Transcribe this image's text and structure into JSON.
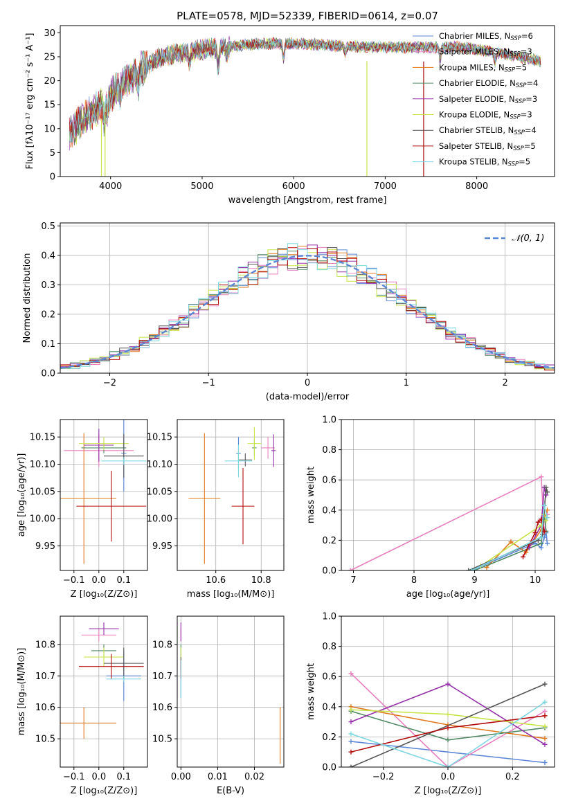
{
  "colors": {
    "chabrier_miles": "#5b86d6",
    "salpeter_miles": "#e77fbf",
    "kroupa_miles": "#e07a1f",
    "chabrier_elodie": "#4f8a64",
    "salpeter_elodie": "#9430a8",
    "kroupa_elodie": "#c7e44a",
    "chabrier_stelib": "#555555",
    "salpeter_stelib": "#b20b0b",
    "kroupa_stelib": "#7fd7e0"
  },
  "chart_data": [
    {
      "id": "spectrum",
      "type": "line",
      "title": "PLATE=0578, MJD=52339, FIBERID=0614, z=0.07",
      "xlabel": "wavelength [Angstrom, rest frame]",
      "ylabel": "Flux [fλ10⁻¹⁷ erg cm⁻² s⁻¹ A⁻¹]",
      "xlim": [
        3450,
        8850
      ],
      "ylim": [
        0,
        31.5
      ],
      "xticks": [
        4000,
        5000,
        6000,
        7000,
        8000
      ],
      "yticks": [
        0,
        5,
        10,
        15,
        20,
        25,
        30
      ],
      "legend_position": "top-right",
      "legend": [
        {
          "key": "chabrier_miles",
          "base": "Chabrier MILES, N",
          "sub": "SSP",
          "tail": "=6"
        },
        {
          "key": "salpeter_miles",
          "base": "Salpeter MILES, N",
          "sub": "SSP",
          "tail": "=3"
        },
        {
          "key": "kroupa_miles",
          "base": "Kroupa MILES, N",
          "sub": "SSP",
          "tail": "=5"
        },
        {
          "key": "chabrier_elodie",
          "base": "Chabrier ELODIE, N",
          "sub": "SSP",
          "tail": "=4"
        },
        {
          "key": "salpeter_elodie",
          "base": "Salpeter ELODIE, N",
          "sub": "SSP",
          "tail": "=3"
        },
        {
          "key": "kroupa_elodie",
          "base": "Kroupa ELODIE, N",
          "sub": "SSP",
          "tail": "=3"
        },
        {
          "key": "chabrier_stelib",
          "base": "Chabrier STELIB, N",
          "sub": "SSP",
          "tail": "=4"
        },
        {
          "key": "salpeter_stelib",
          "base": "Salpeter STELIB, N",
          "sub": "SSP",
          "tail": "=5"
        },
        {
          "key": "kroupa_stelib",
          "base": "Kroupa STELIB, N",
          "sub": "SSP",
          "tail": "=5"
        }
      ],
      "continuum": {
        "x": [
          3550,
          3700,
          3900,
          4000,
          4100,
          4300,
          4500,
          4700,
          5000,
          5200,
          5500,
          5800,
          6200,
          6600,
          7000,
          7400,
          7800,
          8200,
          8600,
          8700
        ],
        "y": [
          9,
          12,
          15,
          17,
          19,
          22,
          24.5,
          25.5,
          26.5,
          27,
          27.5,
          27.8,
          27.6,
          27.2,
          27,
          27,
          27,
          26,
          24.5,
          24
        ]
      },
      "drops": [
        {
          "key": "kroupa_elodie",
          "x": 3900,
          "y": 0
        },
        {
          "key": "kroupa_elodie",
          "x": 3940,
          "y": 0
        },
        {
          "key": "kroupa_elodie",
          "x": 6800,
          "y": 0
        },
        {
          "key": "salpeter_stelib",
          "x": 7420,
          "y": 0
        }
      ]
    },
    {
      "id": "residuals",
      "type": "step",
      "xlabel": "(data-model)/error",
      "ylabel": "Normed distribution",
      "xlim": [
        -2.5,
        2.5
      ],
      "ylim": [
        0,
        0.51
      ],
      "xticks": [
        -2,
        -1,
        0,
        1,
        2
      ],
      "yticks": [
        0.0,
        0.1,
        0.2,
        0.3,
        0.4,
        0.5
      ],
      "bin_width": 0.1,
      "reference": {
        "label": "𝒩(0, 1)",
        "color": "#5b86d6",
        "mean": 0,
        "sigma": 1
      }
    },
    {
      "id": "age_vs_Z",
      "type": "errorbar",
      "xlabel": "Z [log₁₀(Z/Z⊙)]",
      "ylabel": "age  [log₁₀(age/yr)]",
      "xlim": [
        -0.155,
        0.195
      ],
      "ylim": [
        9.905,
        10.182
      ],
      "xticks": [
        -0.1,
        0.0,
        0.1
      ],
      "yticks": [
        9.95,
        10.0,
        10.05,
        10.1,
        10.15
      ],
      "points": [
        {
          "key": "chabrier_miles",
          "x": 0.1,
          "xerr": 0.01,
          "y": 10.12,
          "yerr": 0.07
        },
        {
          "key": "salpeter_miles",
          "x": 0.0,
          "xerr": 0.14,
          "y": 10.125,
          "yerr": 0.03
        },
        {
          "key": "kroupa_miles",
          "x": -0.06,
          "xerr": 0.13,
          "y": 10.037,
          "yerr": 0.12
        },
        {
          "key": "chabrier_elodie",
          "x": 0.02,
          "xerr": 0.09,
          "y": 10.13,
          "yerr": 0.01
        },
        {
          "key": "salpeter_elodie",
          "x": 0.0,
          "xerr": 0.06,
          "y": 10.135,
          "yerr": 0.03
        },
        {
          "key": "kroupa_elodie",
          "x": 0.02,
          "xerr": 0.1,
          "y": 10.138,
          "yerr": 0.012
        },
        {
          "key": "chabrier_stelib",
          "x": 0.1,
          "xerr": 0.08,
          "y": 10.115,
          "yerr": 0.04
        },
        {
          "key": "salpeter_stelib",
          "x": 0.05,
          "xerr": 0.14,
          "y": 10.023,
          "yerr": 0.065
        },
        {
          "key": "kroupa_stelib",
          "x": 0.1,
          "xerr": 0.09,
          "y": 10.106,
          "yerr": 0.007
        }
      ]
    },
    {
      "id": "age_vs_mass",
      "type": "errorbar",
      "xlabel": "mass [log₁₀(M/M⊙)]",
      "ylabel": "",
      "xlim": [
        10.43,
        10.9
      ],
      "ylim": [
        9.905,
        10.182
      ],
      "xticks": [
        10.6,
        10.8
      ],
      "yticks": [
        9.95,
        10.0,
        10.05,
        10.1,
        10.15
      ],
      "points": [
        {
          "key": "chabrier_miles",
          "x": 10.7,
          "xerr": 0.01,
          "y": 10.12,
          "yerr": 0.03
        },
        {
          "key": "salpeter_miles",
          "x": 10.83,
          "xerr": 0.03,
          "y": 10.13,
          "yerr": 0.02
        },
        {
          "key": "kroupa_miles",
          "x": 10.55,
          "xerr": 0.07,
          "y": 10.037,
          "yerr": 0.12
        },
        {
          "key": "chabrier_elodie",
          "x": 10.77,
          "xerr": 0.01,
          "y": 10.13,
          "yerr": 0.015
        },
        {
          "key": "salpeter_elodie",
          "x": 10.855,
          "xerr": 0.01,
          "y": 10.125,
          "yerr": 0.03
        },
        {
          "key": "kroupa_elodie",
          "x": 10.77,
          "xerr": 0.03,
          "y": 10.138,
          "yerr": 0.03
        },
        {
          "key": "chabrier_stelib",
          "x": 10.73,
          "xerr": 0.03,
          "y": 10.108,
          "yerr": 0.012
        },
        {
          "key": "salpeter_stelib",
          "x": 10.72,
          "xerr": 0.05,
          "y": 10.023,
          "yerr": 0.07
        },
        {
          "key": "kroupa_stelib",
          "x": 10.7,
          "xerr": 0.06,
          "y": 10.106,
          "yerr": 0.03
        }
      ]
    },
    {
      "id": "weight_vs_age",
      "type": "line",
      "xlabel": "age  [log₁₀(age/yr)]",
      "ylabel": "mass weight",
      "xlim": [
        6.8,
        10.32
      ],
      "ylim": [
        0,
        1
      ],
      "xticks": [
        7,
        8,
        9,
        10
      ],
      "yticks": [
        0.0,
        0.2,
        0.4,
        0.6,
        0.8,
        1.0
      ],
      "series": [
        {
          "key": "chabrier_miles",
          "x": [
            8.95,
            10.0,
            10.1,
            10.15,
            10.18,
            10.2
          ],
          "y": [
            0.0,
            0.18,
            0.15,
            0.22,
            0.25,
            0.18
          ]
        },
        {
          "key": "salpeter_miles",
          "x": [
            6.95,
            10.1,
            10.15,
            10.2
          ],
          "y": [
            0.0,
            0.62,
            0.25,
            0.37
          ]
        },
        {
          "key": "kroupa_miles",
          "x": [
            9.2,
            9.6,
            9.85,
            10.1,
            10.2
          ],
          "y": [
            0.02,
            0.19,
            0.12,
            0.27,
            0.4
          ]
        },
        {
          "key": "chabrier_elodie",
          "x": [
            9.0,
            10.1,
            10.15,
            10.18
          ],
          "y": [
            0.0,
            0.18,
            0.37,
            0.26
          ]
        },
        {
          "key": "salpeter_elodie",
          "x": [
            9.9,
            10.1,
            10.15,
            10.18
          ],
          "y": [
            0.15,
            0.3,
            0.55,
            0.5
          ]
        },
        {
          "key": "kroupa_elodie",
          "x": [
            9.1,
            10.1,
            10.15,
            10.18
          ],
          "y": [
            0.03,
            0.3,
            0.37,
            0.33
          ]
        },
        {
          "key": "chabrier_stelib",
          "x": [
            8.9,
            10.05,
            10.12,
            10.18,
            10.2
          ],
          "y": [
            0.0,
            0.2,
            0.24,
            0.55,
            0.52
          ]
        },
        {
          "key": "salpeter_stelib",
          "x": [
            9.8,
            10.0,
            10.05,
            10.1,
            10.15
          ],
          "y": [
            0.09,
            0.25,
            0.32,
            0.34,
            0.26
          ]
        },
        {
          "key": "kroupa_stelib",
          "x": [
            8.95,
            10.1,
            10.15,
            10.2
          ],
          "y": [
            0.0,
            0.22,
            0.43,
            0.35
          ]
        }
      ]
    },
    {
      "id": "mass_vs_Z",
      "type": "errorbar",
      "xlabel": "Z [log₁₀(Z/Z⊙)]",
      "ylabel": "mass [log₁₀(M/M⊙)]",
      "xlim": [
        -0.155,
        0.195
      ],
      "ylim": [
        10.41,
        10.89
      ],
      "xticks": [
        -0.1,
        0.0,
        0.1
      ],
      "yticks": [
        10.5,
        10.6,
        10.7,
        10.8
      ],
      "points": [
        {
          "key": "chabrier_miles",
          "x": 0.1,
          "xerr": 0.07,
          "y": 10.7,
          "yerr": 0.08
        },
        {
          "key": "salpeter_miles",
          "x": 0.0,
          "xerr": 0.07,
          "y": 10.83,
          "yerr": 0.02
        },
        {
          "key": "kroupa_miles",
          "x": -0.06,
          "xerr": 0.13,
          "y": 10.55,
          "yerr": 0.05
        },
        {
          "key": "chabrier_elodie",
          "x": 0.02,
          "xerr": 0.05,
          "y": 10.78,
          "yerr": 0.02
        },
        {
          "key": "salpeter_elodie",
          "x": 0.02,
          "xerr": 0.06,
          "y": 10.85,
          "yerr": 0.02
        },
        {
          "key": "kroupa_elodie",
          "x": 0.02,
          "xerr": 0.08,
          "y": 10.76,
          "yerr": 0.03
        },
        {
          "key": "chabrier_stelib",
          "x": 0.1,
          "xerr": 0.08,
          "y": 10.74,
          "yerr": 0.05
        },
        {
          "key": "salpeter_stelib",
          "x": 0.05,
          "xerr": 0.13,
          "y": 10.73,
          "yerr": 0.04
        },
        {
          "key": "kroupa_stelib",
          "x": 0.1,
          "xerr": 0.07,
          "y": 10.69,
          "yerr": 0.01
        }
      ]
    },
    {
      "id": "mass_vs_ebv",
      "type": "errorbar",
      "xlabel": "E(B-V)",
      "ylabel": "",
      "xlim": [
        -0.001,
        0.028
      ],
      "ylim": [
        10.41,
        10.89
      ],
      "xticks": [
        0.0,
        0.01,
        0.02
      ],
      "yticks": [
        10.5,
        10.6,
        10.7,
        10.8
      ],
      "points": [
        {
          "key": "chabrier_miles",
          "x": 0.0,
          "xerr": 0,
          "y": 10.68,
          "yerr": 0.05
        },
        {
          "key": "salpeter_miles",
          "x": 0.0,
          "xerr": 0,
          "y": 10.83,
          "yerr": 0.02
        },
        {
          "key": "kroupa_miles",
          "x": 0.027,
          "xerr": 0,
          "y": 10.51,
          "yerr": 0.09
        },
        {
          "key": "chabrier_elodie",
          "x": 0.0,
          "xerr": 0,
          "y": 10.78,
          "yerr": 0.02
        },
        {
          "key": "salpeter_elodie",
          "x": 0.0,
          "xerr": 0,
          "y": 10.84,
          "yerr": 0.03
        },
        {
          "key": "kroupa_elodie",
          "x": 0.0,
          "xerr": 0,
          "y": 10.76,
          "yerr": 0.03
        },
        {
          "key": "chabrier_stelib",
          "x": 0.0,
          "xerr": 0,
          "y": 10.74,
          "yerr": 0.02
        },
        {
          "key": "salpeter_stelib",
          "x": 0.0,
          "xerr": 0,
          "y": 10.72,
          "yerr": 0.03
        },
        {
          "key": "kroupa_stelib",
          "x": 0.0,
          "xerr": 0,
          "y": 10.69,
          "yerr": 0.06
        }
      ]
    },
    {
      "id": "weight_vs_Z",
      "type": "line",
      "xlabel": "Z [log₁₀(Z/Z⊙)]",
      "ylabel": "mass weight",
      "xlim": [
        -0.33,
        0.33
      ],
      "ylim": [
        0,
        1
      ],
      "xticks": [
        -0.2,
        0.0,
        0.2
      ],
      "yticks": [
        0.0,
        0.2,
        0.4,
        0.6,
        0.8,
        1.0
      ],
      "series": [
        {
          "key": "chabrier_miles",
          "x": [
            -0.3,
            0.3
          ],
          "y": [
            0.17,
            0.03
          ]
        },
        {
          "key": "salpeter_miles",
          "x": [
            -0.3,
            0.0,
            0.3
          ],
          "y": [
            0.62,
            0.0,
            0.37
          ]
        },
        {
          "key": "kroupa_miles",
          "x": [
            -0.3,
            0.0,
            0.3
          ],
          "y": [
            0.4,
            0.28,
            0.19
          ]
        },
        {
          "key": "chabrier_elodie",
          "x": [
            -0.3,
            0.0,
            0.3
          ],
          "y": [
            0.37,
            0.18,
            0.26
          ]
        },
        {
          "key": "salpeter_elodie",
          "x": [
            -0.3,
            0.0,
            0.3
          ],
          "y": [
            0.3,
            0.55,
            0.15
          ]
        },
        {
          "key": "kroupa_elodie",
          "x": [
            -0.3,
            0.0,
            0.3
          ],
          "y": [
            0.38,
            0.35,
            0.27
          ]
        },
        {
          "key": "chabrier_stelib",
          "x": [
            -0.3,
            0.3
          ],
          "y": [
            0.0,
            0.55
          ]
        },
        {
          "key": "salpeter_stelib",
          "x": [
            -0.3,
            0.0,
            0.3
          ],
          "y": [
            0.1,
            0.26,
            0.34
          ]
        },
        {
          "key": "kroupa_stelib",
          "x": [
            -0.3,
            0.0,
            0.3
          ],
          "y": [
            0.22,
            0.0,
            0.43
          ]
        }
      ]
    }
  ]
}
